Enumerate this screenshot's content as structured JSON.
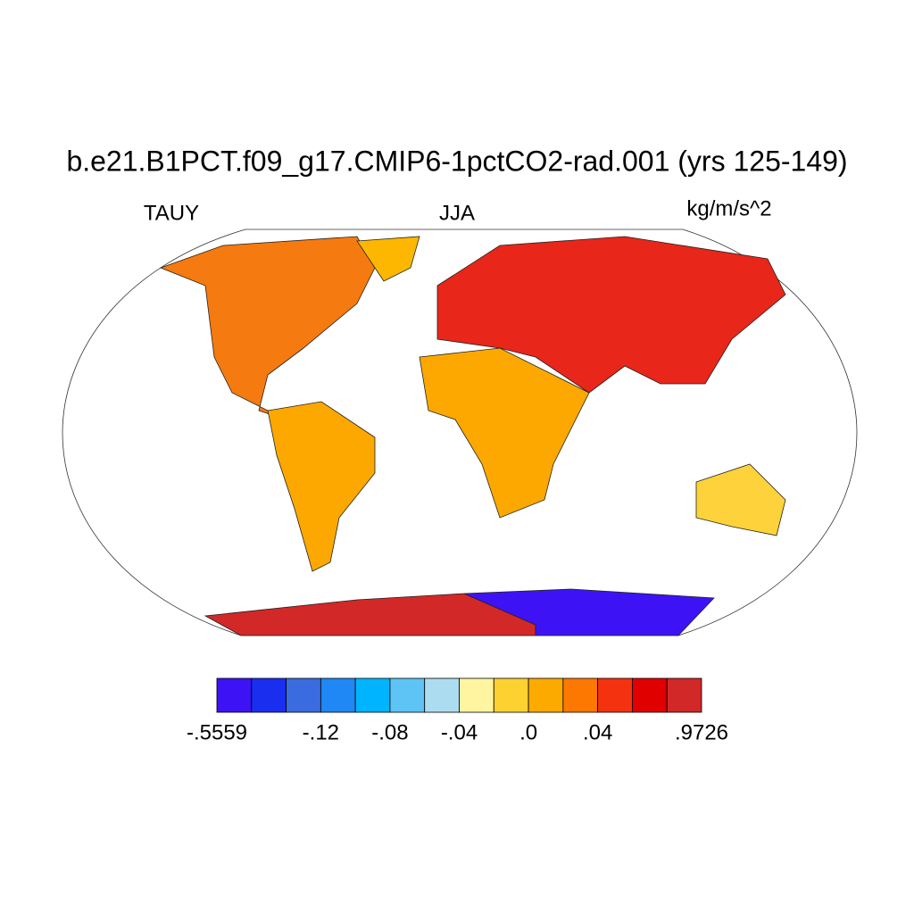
{
  "title": "b.e21.B1PCT.f09_g17.CMIP6-1pctCO2-rad.001 (yrs 125-149)",
  "left_string": "TAUY",
  "center_string": "JJA",
  "right_string": "kg/m/s^2",
  "colorbar": {
    "colors": [
      "#3d13f5",
      "#1a2ef0",
      "#3a6ce0",
      "#1f88f5",
      "#00b4ff",
      "#5ec4f5",
      "#acdcf0",
      "#fff5a0",
      "#fdd230",
      "#fdaa00",
      "#fd7800",
      "#f53210",
      "#e00000",
      "#d22828"
    ],
    "labels": [
      "-.5559",
      "-.12",
      "-.08",
      "-.04",
      ".0",
      ".04",
      ".9726"
    ]
  }
}
